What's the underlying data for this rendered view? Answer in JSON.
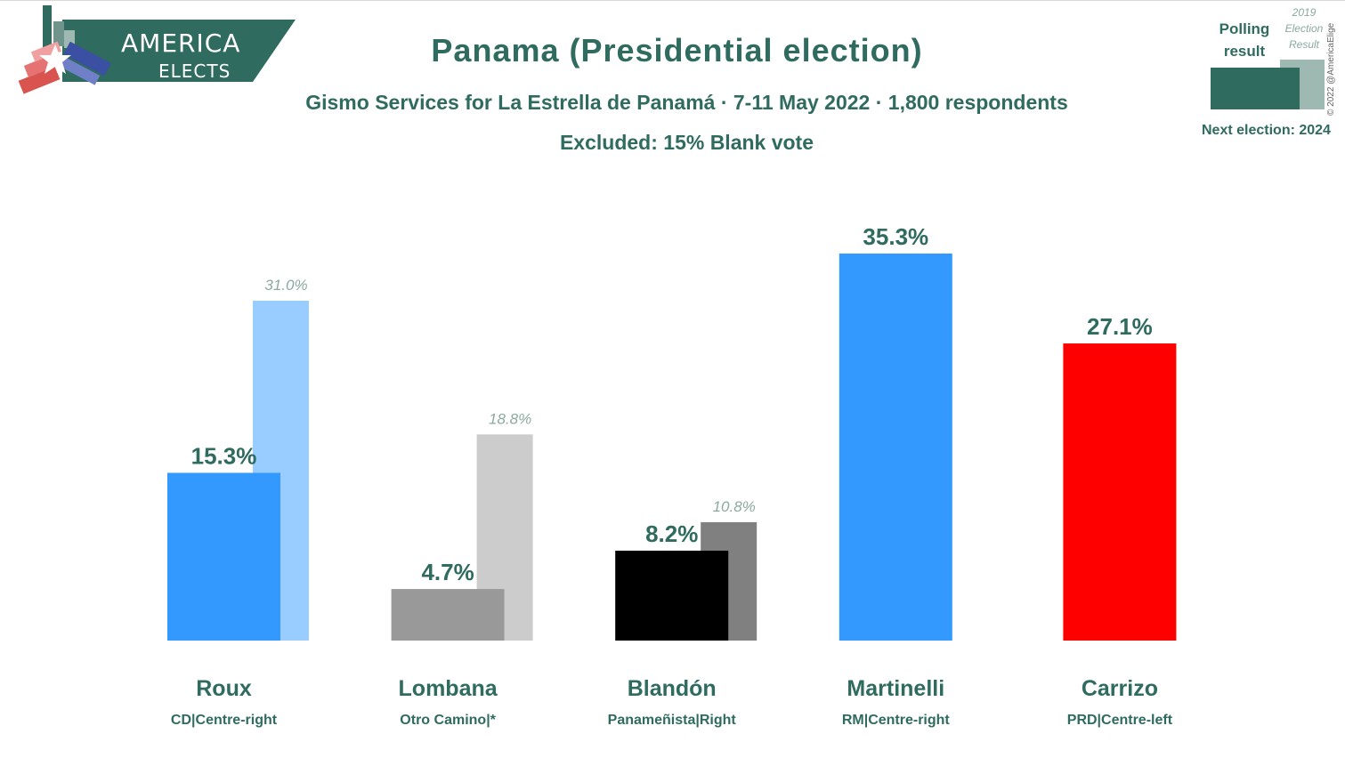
{
  "header": {
    "title": "Panama (Presidential election)",
    "subtitle": "Gismo Services for La Estrella de Panamá · 7-11 May 2022 · 1,800 respondents",
    "excluded": "Excluded: 15% Blank vote"
  },
  "logo": {
    "line1": "AMERICA",
    "line2": "ELECTS"
  },
  "legend": {
    "polling_label": "Polling result",
    "election_label": "2019 Election Result",
    "next_election": "Next election: 2024"
  },
  "copyright": "© 2022 @AmericaElige",
  "colors": {
    "text": "#2f6b5e",
    "prev_text": "#8aa9a2"
  },
  "chart_data": {
    "type": "bar",
    "categories": [
      "Roux",
      "Lombana",
      "Blandón",
      "Martinelli",
      "Carrizo"
    ],
    "parties": [
      "CD|Centre-right",
      "Otro Camino|*",
      "Panameñista|Right",
      "RM|Centre-right",
      "PRD|Centre-left"
    ],
    "series": [
      {
        "name": "Polling result",
        "values": [
          15.3,
          4.7,
          8.2,
          35.3,
          27.1
        ],
        "labels": [
          "15.3%",
          "4.7%",
          "8.2%",
          "35.3%",
          "27.1%"
        ],
        "colors": [
          "#3399ff",
          "#999999",
          "#000000",
          "#3399ff",
          "#ff0000"
        ]
      },
      {
        "name": "2019 Election Result",
        "values": [
          31.0,
          18.8,
          10.8,
          null,
          null
        ],
        "labels": [
          "31.0%",
          "18.8%",
          "10.8%",
          "",
          ""
        ],
        "colors": [
          "#99ccff",
          "#cccccc",
          "#808080",
          "",
          ""
        ]
      }
    ],
    "ylim": [
      0,
      35.3
    ]
  }
}
